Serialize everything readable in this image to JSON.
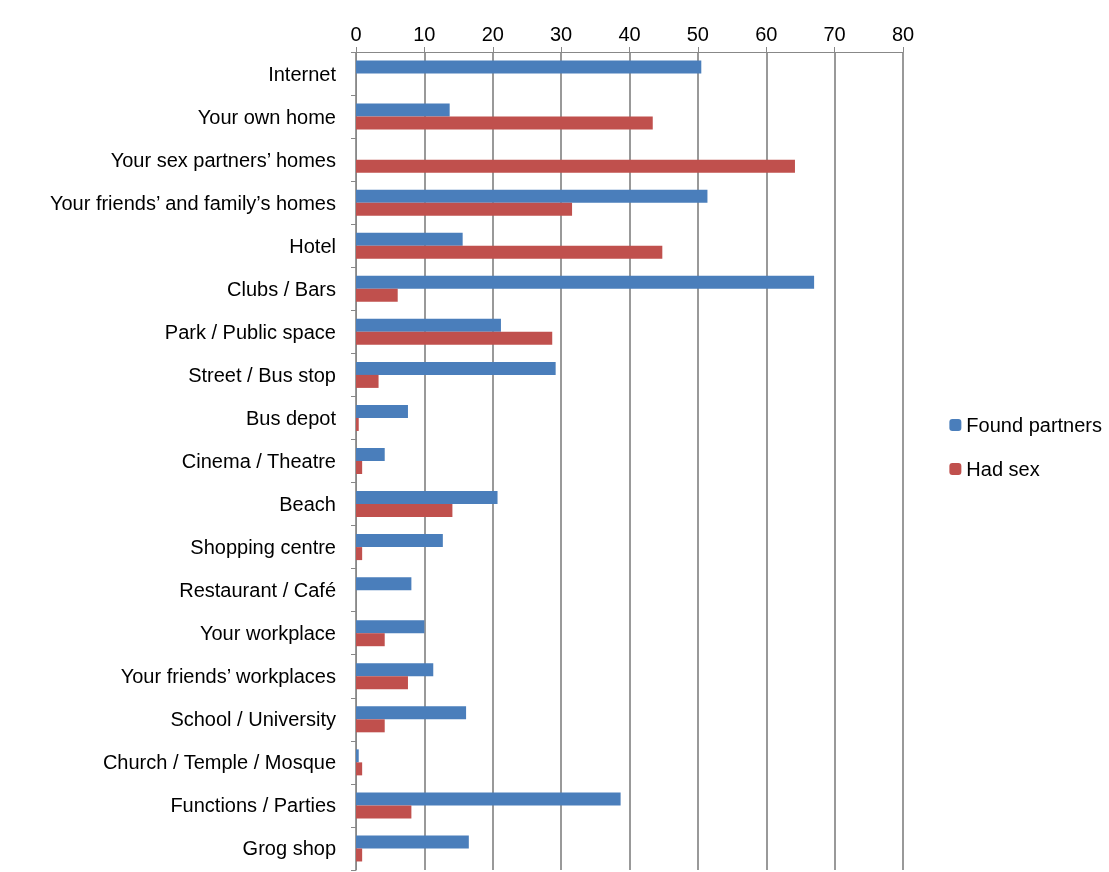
{
  "chart_data": {
    "type": "bar",
    "orientation": "horizontal",
    "categories": [
      "Internet",
      "Your own home",
      "Your sex partners’ homes",
      "Your friends’ and family’s homes",
      "Hotel",
      "Clubs / Bars",
      "Park / Public space",
      "Street / Bus stop",
      "Bus depot",
      "Cinema / Theatre",
      "Beach",
      "Shopping centre",
      "Restaurant / Café",
      "Your workplace",
      "Your friends’ workplaces",
      "School / University",
      "Church / Temple / Mosque",
      "Functions / Parties",
      "Grog shop"
    ],
    "series": [
      {
        "name": "Found partners",
        "color": "#4a7ebb",
        "values": [
          50.5,
          13.7,
          null,
          51.4,
          15.6,
          67.0,
          21.2,
          29.2,
          7.6,
          4.2,
          20.7,
          12.7,
          8.1,
          10.0,
          11.3,
          16.1,
          0.4,
          38.7,
          16.5
        ]
      },
      {
        "name": "Had sex",
        "color": "#c0504d",
        "values": [
          null,
          43.4,
          64.2,
          31.6,
          44.8,
          6.1,
          28.7,
          3.3,
          0.4,
          0.9,
          14.1,
          0.9,
          null,
          4.2,
          7.6,
          4.2,
          0.9,
          8.1,
          0.9
        ]
      }
    ],
    "xlim": [
      0,
      80
    ],
    "xticks": [
      0,
      10,
      20,
      30,
      40,
      50,
      60,
      70,
      80
    ],
    "grid": "x",
    "legend": "right"
  }
}
